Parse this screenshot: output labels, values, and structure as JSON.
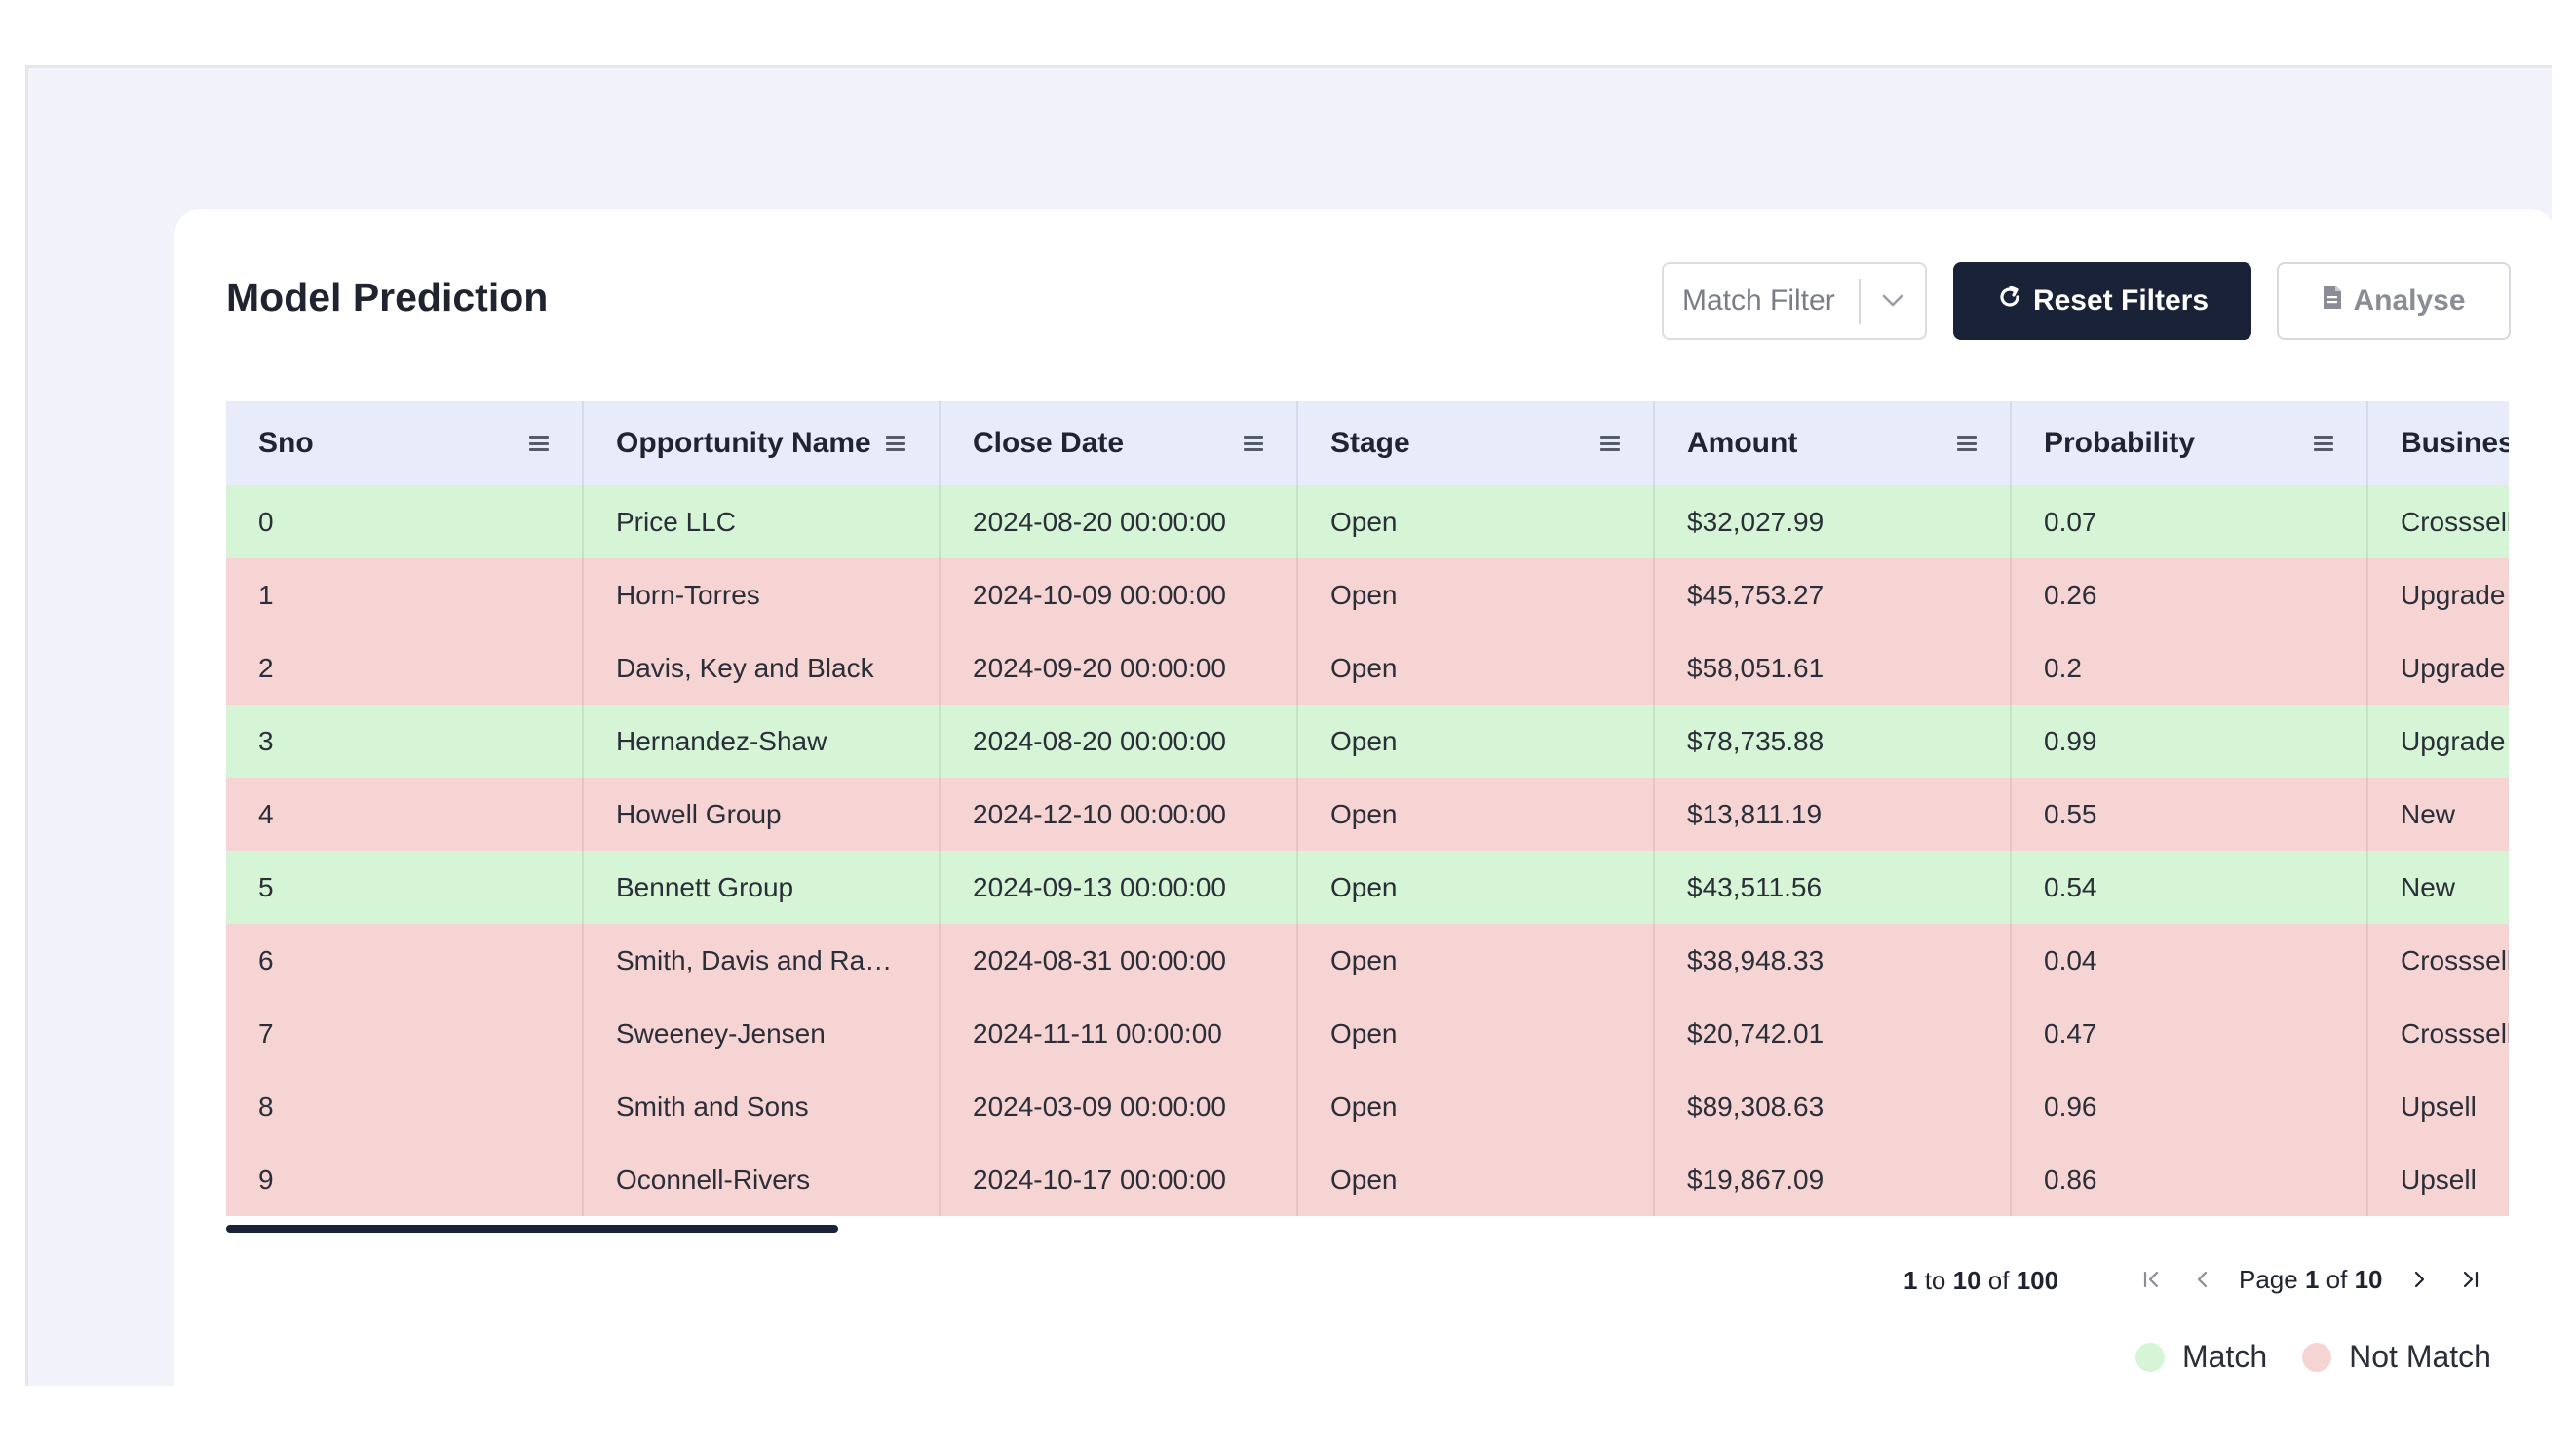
{
  "header": {
    "title": "Model Prediction",
    "match_filter_placeholder": "Match Filter",
    "reset_label": "Reset Filters",
    "analyse_label": "Analyse"
  },
  "table": {
    "columns": [
      "Sno",
      "Opportunity Name",
      "Close Date",
      "Stage",
      "Amount",
      "Probability",
      "Busines"
    ],
    "rows": [
      {
        "status": "match",
        "cells": [
          "0",
          "Price LLC",
          "2024-08-20 00:00:00",
          "Open",
          "$32,027.99",
          "0.07",
          "Crosssell"
        ]
      },
      {
        "status": "nomatch",
        "cells": [
          "1",
          "Horn-Torres",
          "2024-10-09 00:00:00",
          "Open",
          "$45,753.27",
          "0.26",
          "Upgrade"
        ]
      },
      {
        "status": "nomatch",
        "cells": [
          "2",
          "Davis, Key and Black",
          "2024-09-20 00:00:00",
          "Open",
          "$58,051.61",
          "0.2",
          "Upgrade"
        ]
      },
      {
        "status": "match",
        "cells": [
          "3",
          "Hernandez-Shaw",
          "2024-08-20 00:00:00",
          "Open",
          "$78,735.88",
          "0.99",
          "Upgrade"
        ]
      },
      {
        "status": "nomatch",
        "cells": [
          "4",
          "Howell Group",
          "2024-12-10 00:00:00",
          "Open",
          "$13,811.19",
          "0.55",
          "New"
        ]
      },
      {
        "status": "match",
        "cells": [
          "5",
          "Bennett Group",
          "2024-09-13 00:00:00",
          "Open",
          "$43,511.56",
          "0.54",
          "New"
        ]
      },
      {
        "status": "nomatch",
        "cells": [
          "6",
          "Smith, Davis and Ramir...",
          "2024-08-31 00:00:00",
          "Open",
          "$38,948.33",
          "0.04",
          "Crosssell"
        ]
      },
      {
        "status": "nomatch",
        "cells": [
          "7",
          "Sweeney-Jensen",
          "2024-11-11 00:00:00",
          "Open",
          "$20,742.01",
          "0.47",
          "Crosssell"
        ]
      },
      {
        "status": "nomatch",
        "cells": [
          "8",
          "Smith and Sons",
          "2024-03-09 00:00:00",
          "Open",
          "$89,308.63",
          "0.96",
          "Upsell"
        ]
      },
      {
        "status": "nomatch",
        "cells": [
          "9",
          "Oconnell-Rivers",
          "2024-10-17 00:00:00",
          "Open",
          "$19,867.09",
          "0.86",
          "Upsell"
        ]
      }
    ]
  },
  "pagination": {
    "from": "1",
    "to_word": "to",
    "to": "10",
    "of_word": "of",
    "total": "100",
    "page_word": "Page",
    "page": "1",
    "page_of_word": "of",
    "pages": "10"
  },
  "legend": {
    "match_label": "Match",
    "nomatch_label": "Not Match",
    "match_color": "#d6f5d6",
    "nomatch_color": "#f6d4d3"
  },
  "colors": {
    "primary_dark": "#1a2238",
    "header_bg": "#e7ebfa",
    "page_bg": "#f1f2fa"
  }
}
